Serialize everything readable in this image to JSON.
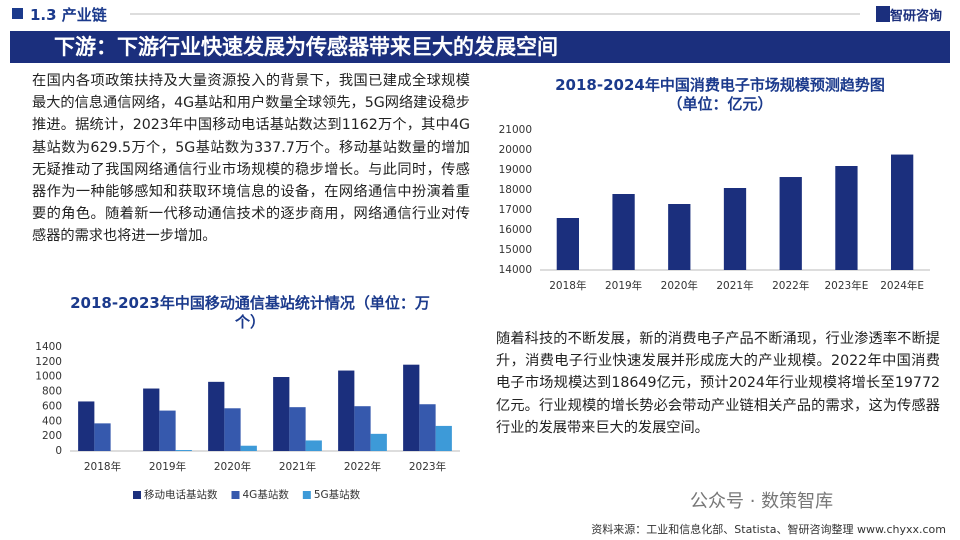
{
  "header": {
    "section": "1.3 产业链",
    "logo": "智研咨询"
  },
  "banner": {
    "title": "下游：下游行业快速发展为传感器带来巨大的发展空间"
  },
  "paragraphs": [
    "在国内各项政策扶持及大量资源投入的背景下，我国已建成全球规模最大的信息通信网络，4G基站和用户数量全球领先，5G网络建设稳步推进。据统计，2023年中国移动电话基站数达到1162万个，其中4G基站数为629.5万个，5G基站数为337.7万个。移动基站数量的增加无疑推动了我国网络通信行业市场规模的稳步增长。与此同时，传感器作为一种能够感知和获取环境信息的设备，在网络通信中扮演着重要的角色。随着新一代移动通信技术的逐步商用，网络通信行业对传感器的需求也将进一步增加。",
    "随着科技的不断发展，新的消费电子产品不断涌现，行业渗透率不断提升，消费电子行业快速发展并形成庞大的产业规模。2022年中国消费电子市场规模达到18649亿元，预计2024年行业规模将增长至19772亿元。行业规模的增长势必会带动产业链相关产品的需求，这为传感器行业的发展带来巨大的发展空间。"
  ],
  "watermark": "公众号 · 数策智库",
  "source": "资料来源：工业和信息化部、Statista、智研咨询整理 www.chyxx.com",
  "chart_data": [
    {
      "type": "bar",
      "title": "2018-2024年中国消费电子市场规模预测趋势图",
      "subtitle": "（单位：亿元）",
      "categories": [
        "2018年",
        "2019年",
        "2020年",
        "2021年",
        "2022年",
        "2023年E",
        "2024年E"
      ],
      "values": [
        16600,
        17800,
        17300,
        18100,
        18649,
        19200,
        19772
      ],
      "color": "#1b2f7d",
      "ylim": [
        14000,
        21000
      ],
      "yticks": [
        14000,
        15000,
        16000,
        17000,
        18000,
        19000,
        20000,
        21000
      ],
      "grid": false
    },
    {
      "type": "bar",
      "title": "2018-2023年中国移动通信基站统计情况（单位：万个）",
      "categories": [
        "2018年",
        "2019年",
        "2020年",
        "2021年",
        "2022年",
        "2023年"
      ],
      "series": [
        {
          "name": "移动电话基站数",
          "color": "#1b2f7d",
          "values": [
            667,
            841,
            931,
            996,
            1083,
            1162
          ]
        },
        {
          "name": "4G基站数",
          "color": "#3659ad",
          "values": [
            372,
            544,
            575,
            590,
            603,
            629.5
          ]
        },
        {
          "name": "5G基站数",
          "color": "#3d9ad8",
          "values": [
            0,
            13,
            71,
            142,
            231,
            337.7
          ]
        }
      ],
      "ylim": [
        0,
        1400
      ],
      "yticks": [
        0,
        200,
        400,
        600,
        800,
        1000,
        1200,
        1400
      ],
      "grid": false
    }
  ]
}
